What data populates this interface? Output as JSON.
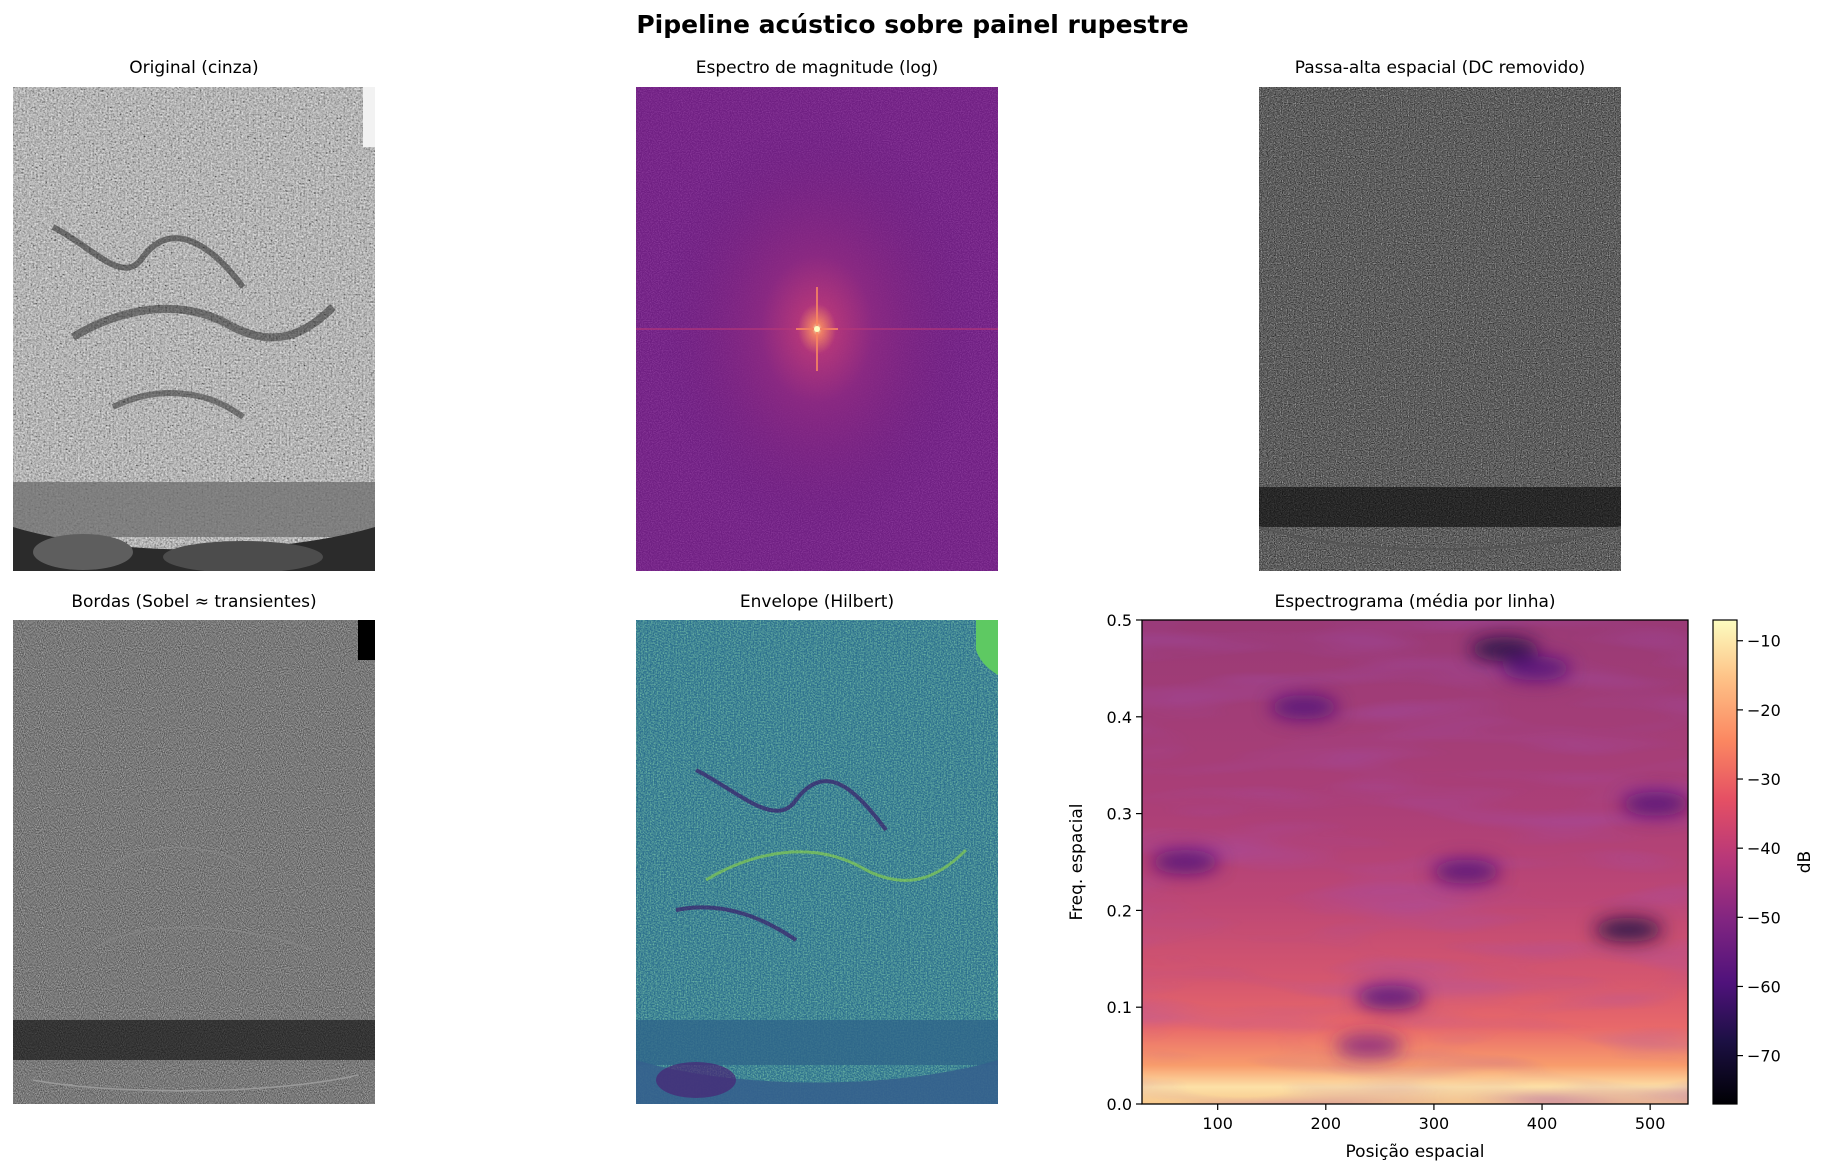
{
  "suptitle": "Pipeline acústico sobre painel rupestre",
  "panels": {
    "original": {
      "title": "Original (cinza)"
    },
    "spectrum": {
      "title": "Espectro de magnitude (log)"
    },
    "highpass": {
      "title": "Passa-alta espacial (DC removido)"
    },
    "edges": {
      "title": "Bordas (Sobel ≈ transientes)"
    },
    "envelope": {
      "title": "Envelope (Hilbert)"
    }
  },
  "chart_data": {
    "type": "heatmap",
    "title": "Espectrograma (média por linha)",
    "xlabel": "Posição espacial",
    "ylabel": "Freq. espacial",
    "xlim": [
      30,
      535
    ],
    "ylim": [
      0,
      0.5
    ],
    "xticks": [
      100,
      200,
      300,
      400,
      500
    ],
    "yticks": [
      0.0,
      0.1,
      0.2,
      0.3,
      0.4,
      0.5
    ],
    "colormap": "magma",
    "colorbar": {
      "label": "dB",
      "range": [
        -77,
        -7
      ],
      "ticks": [
        -10,
        -20,
        -30,
        -40,
        -50,
        -60,
        -70
      ]
    },
    "dark_spots": [
      {
        "x": 365,
        "y": 0.47,
        "db": -68
      },
      {
        "x": 480,
        "y": 0.18,
        "db": -65
      },
      {
        "x": 260,
        "y": 0.11,
        "db": -60
      },
      {
        "x": 395,
        "y": 0.45,
        "db": -60
      },
      {
        "x": 505,
        "y": 0.31,
        "db": -60
      },
      {
        "x": 70,
        "y": 0.25,
        "db": -58
      },
      {
        "x": 180,
        "y": 0.41,
        "db": -56
      },
      {
        "x": 330,
        "y": 0.24,
        "db": -56
      },
      {
        "x": 240,
        "y": 0.06,
        "db": -55
      }
    ]
  }
}
